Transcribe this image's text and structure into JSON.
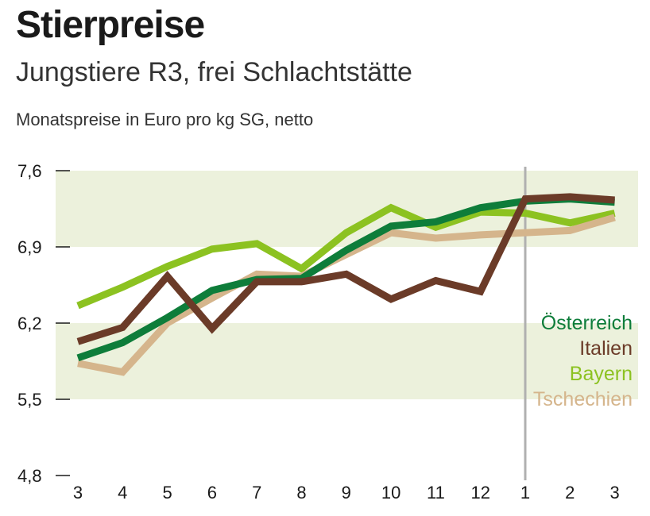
{
  "chart_data": {
    "type": "line",
    "title": "Stierpreise",
    "subtitle": "Jungstiere R3, frei Schlachtstätte",
    "ylabel": "Monatspreise in Euro pro kg SG, netto",
    "categories": [
      "3",
      "4",
      "5",
      "6",
      "7",
      "8",
      "9",
      "10",
      "11",
      "12",
      "1",
      "2",
      "3"
    ],
    "ylim": [
      4.8,
      7.6
    ],
    "yticks": [
      "7,6",
      "6,9",
      "6,2",
      "5,5",
      "4,8"
    ],
    "ytick_values": [
      7.6,
      6.9,
      6.2,
      5.5,
      4.8
    ],
    "shaded_bands": [
      [
        6.9,
        7.6
      ],
      [
        5.5,
        6.2
      ]
    ],
    "band_color": "#ecf1dc",
    "year_divider_at_category": "1",
    "legend_position": "right",
    "series": [
      {
        "name": "Bayern",
        "color": "#8cc221",
        "values": [
          6.36,
          6.53,
          6.72,
          6.88,
          6.93,
          6.7,
          7.03,
          7.26,
          7.08,
          7.22,
          7.21,
          7.12,
          7.21
        ]
      },
      {
        "name": "Tschechien",
        "color": "#d5b58c",
        "values": [
          5.83,
          5.75,
          6.2,
          6.43,
          6.65,
          6.63,
          6.83,
          7.03,
          6.98,
          7.01,
          7.03,
          7.05,
          7.17
        ]
      },
      {
        "name": "Österreich",
        "color": "#0e7d3a",
        "values": [
          5.88,
          6.02,
          6.25,
          6.5,
          6.6,
          6.61,
          6.87,
          7.09,
          7.13,
          7.26,
          7.32,
          7.34,
          7.31
        ]
      },
      {
        "name": "Italien",
        "color": "#6b3b28",
        "values": [
          6.03,
          6.16,
          6.63,
          6.15,
          6.58,
          6.58,
          6.65,
          6.42,
          6.59,
          6.49,
          7.34,
          7.36,
          7.33
        ]
      }
    ],
    "legend_order": [
      "Österreich",
      "Italien",
      "Bayern",
      "Tschechien"
    ]
  }
}
